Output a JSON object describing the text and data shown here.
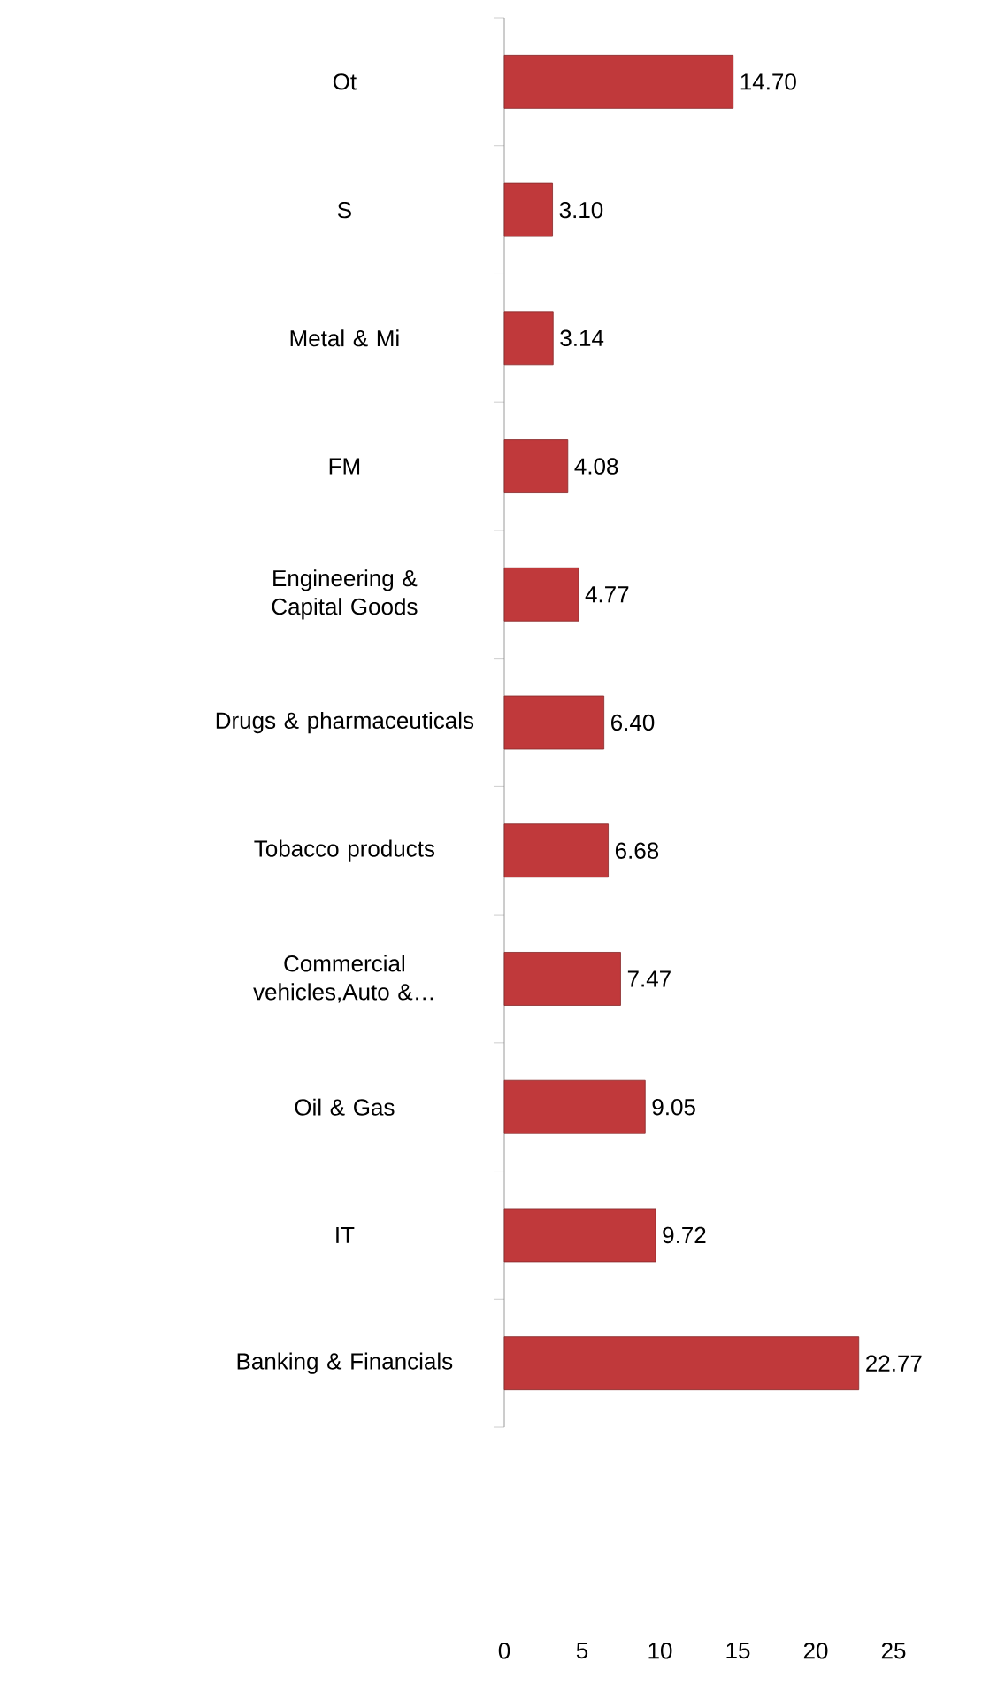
{
  "chart_data": {
    "type": "bar",
    "orientation": "horizontal",
    "categories": [
      "Ot",
      "S",
      "Metal & Mi",
      "FM",
      "Engineering & Capital Goods",
      "Drugs & pharmaceuticals",
      "Tobacco products",
      "Commercial vehicles,Auto &…",
      "Oil & Gas",
      "IT",
      "Banking & Financials"
    ],
    "values": [
      14.7,
      3.1,
      3.14,
      4.08,
      4.77,
      6.4,
      6.68,
      7.47,
      9.05,
      9.72,
      22.77
    ],
    "value_labels": [
      "14.70",
      "3.10",
      "3.14",
      "4.08",
      "4.77",
      "6.40",
      "6.68",
      "7.47",
      "9.05",
      "9.72",
      "22.77"
    ],
    "color": "#c0393b",
    "xlim": [
      0,
      25
    ],
    "xticks": [
      0,
      5,
      10,
      15,
      20,
      25
    ],
    "grid": false
  }
}
